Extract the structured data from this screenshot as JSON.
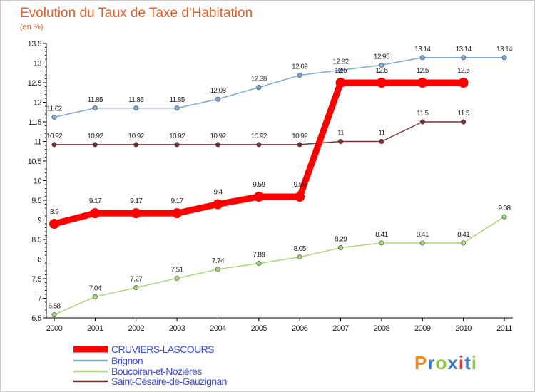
{
  "chart_data": {
    "type": "line",
    "title": "Evolution du Taux de Taxe d'Habitation",
    "subtitle": "(en %)",
    "x": [
      "2000",
      "2001",
      "2002",
      "2003",
      "2004",
      "2005",
      "2006",
      "2007",
      "2008",
      "2009",
      "2010",
      "2011"
    ],
    "ylim": [
      6.5,
      13.5
    ],
    "yticks": [
      "6.5",
      "7",
      "7.5",
      "8",
      "8.5",
      "9",
      "9.5",
      "10",
      "10.5",
      "11",
      "11.5",
      "12",
      "12.5",
      "13",
      "13.5"
    ],
    "grid": false,
    "legend_position": "bottom-left",
    "series": [
      {
        "name": "CRUVIERS-LASCOURS",
        "color": "#ff0000",
        "values": [
          8.9,
          9.17,
          9.17,
          9.17,
          9.4,
          9.59,
          9.59,
          12.5,
          12.5,
          12.5,
          12.5,
          null
        ],
        "labels": [
          "8.9",
          "9.17",
          "9.17",
          "9.17",
          "9.4",
          "9.59",
          "9.59",
          "12.5",
          "12.5",
          "12.5",
          "12.5",
          ""
        ]
      },
      {
        "name": "Brignon",
        "color": "#7fa9d6",
        "values": [
          11.62,
          11.85,
          11.85,
          11.85,
          12.08,
          12.38,
          12.69,
          12.82,
          12.95,
          13.14,
          13.14,
          13.14
        ],
        "labels": [
          "11.62",
          "11.85",
          "11.85",
          "11.85",
          "12.08",
          "12.38",
          "12.69",
          "12.82",
          "12.95",
          "13.14",
          "13.14",
          "13.14"
        ]
      },
      {
        "name": "Boucoiran-et-Nozières",
        "color": "#a8d878",
        "values": [
          6.58,
          7.04,
          7.27,
          7.51,
          7.74,
          7.89,
          8.05,
          8.29,
          8.41,
          8.41,
          8.41,
          9.08
        ],
        "labels": [
          "6.58",
          "7.04",
          "7.27",
          "7.51",
          "7.74",
          "7.89",
          "8.05",
          "8.29",
          "8.41",
          "8.41",
          "8.41",
          "9.08"
        ]
      },
      {
        "name": "Saint-Césaire-de-Gauzignan",
        "color": "#7a3434",
        "values": [
          10.92,
          10.92,
          10.92,
          10.92,
          10.92,
          10.92,
          10.92,
          11,
          11,
          11.5,
          11.5,
          null
        ],
        "labels": [
          "10.92",
          "10.92",
          "10.92",
          "10.92",
          "10.92",
          "10.92",
          "10.92",
          "11",
          "11",
          "11.5",
          "11.5",
          ""
        ]
      }
    ]
  },
  "logo": {
    "text": "Proxiti",
    "colors": [
      "#f08a1c",
      "#3a78c8",
      "#8cc63e",
      "#3a78c8",
      "#e83030",
      "#3a78c8",
      "#8cc63e"
    ]
  }
}
